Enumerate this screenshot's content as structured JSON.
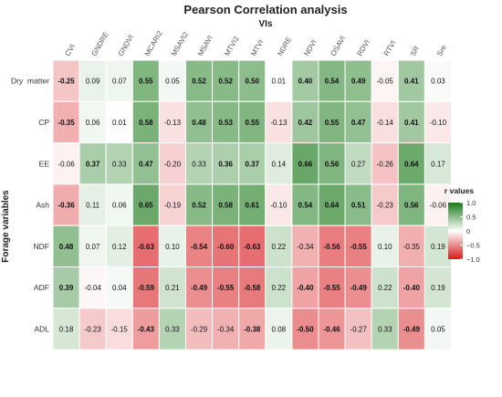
{
  "chart_data": {
    "type": "heatmap",
    "title": "Pearson Correlation analysis",
    "xlabel": "VIs",
    "ylabel": "Forage variables",
    "columns": [
      "CVI",
      "GNDRE",
      "GNDVI",
      "MCARI2",
      "MSAVI2",
      "MSAVI",
      "MTVI2",
      "MTVI",
      "NDRE",
      "NDVI",
      "OSAVI",
      "RDVI",
      "RTVI",
      "SR",
      "Sre"
    ],
    "rows": [
      "Dry  matter",
      "CP",
      "EE",
      "Ash",
      "NDF",
      "ADF",
      "ADL"
    ],
    "values": [
      [
        -0.25,
        0.09,
        0.07,
        0.55,
        0.05,
        0.52,
        0.52,
        0.5,
        0.01,
        0.4,
        0.54,
        0.49,
        -0.05,
        0.41,
        0.03
      ],
      [
        -0.35,
        0.06,
        0.01,
        0.58,
        -0.13,
        0.48,
        0.53,
        0.55,
        -0.13,
        0.42,
        0.55,
        0.47,
        -0.14,
        0.41,
        -0.1
      ],
      [
        -0.06,
        0.37,
        0.33,
        0.47,
        -0.2,
        0.33,
        0.36,
        0.37,
        0.14,
        0.66,
        0.56,
        0.27,
        -0.26,
        0.64,
        0.17
      ],
      [
        -0.36,
        0.11,
        0.06,
        0.65,
        -0.19,
        0.52,
        0.58,
        0.61,
        -0.1,
        0.54,
        0.64,
        0.51,
        -0.23,
        0.56,
        -0.06
      ],
      [
        0.48,
        0.07,
        0.12,
        -0.63,
        0.1,
        -0.54,
        -0.6,
        -0.63,
        0.22,
        -0.34,
        -0.56,
        -0.55,
        0.1,
        -0.35,
        0.19
      ],
      [
        0.39,
        -0.04,
        0.04,
        -0.59,
        0.21,
        -0.49,
        -0.55,
        -0.58,
        0.22,
        -0.4,
        -0.55,
        -0.49,
        0.22,
        -0.4,
        0.19
      ],
      [
        0.18,
        -0.23,
        -0.15,
        -0.43,
        0.33,
        -0.29,
        -0.34,
        -0.38,
        0.08,
        -0.5,
        -0.46,
        -0.27,
        0.33,
        -0.49,
        0.05
      ]
    ],
    "bold": [
      [
        1,
        0,
        0,
        1,
        0,
        1,
        1,
        1,
        0,
        1,
        1,
        1,
        0,
        1,
        0
      ],
      [
        1,
        0,
        0,
        1,
        0,
        1,
        1,
        1,
        0,
        1,
        1,
        1,
        0,
        1,
        0
      ],
      [
        0,
        1,
        0,
        1,
        0,
        0,
        1,
        1,
        0,
        1,
        1,
        0,
        0,
        1,
        0
      ],
      [
        1,
        0,
        0,
        1,
        0,
        1,
        1,
        1,
        0,
        1,
        1,
        1,
        0,
        1,
        0
      ],
      [
        1,
        0,
        0,
        1,
        0,
        1,
        1,
        1,
        0,
        0,
        1,
        1,
        0,
        0,
        0
      ],
      [
        1,
        0,
        0,
        1,
        0,
        1,
        1,
        1,
        0,
        1,
        1,
        1,
        0,
        1,
        0
      ],
      [
        0,
        0,
        0,
        1,
        0,
        0,
        0,
        1,
        0,
        1,
        1,
        0,
        0,
        1,
        0
      ]
    ],
    "color_scale": {
      "min": -1.0,
      "max": 1.0,
      "low_color": "#d7191c",
      "mid_color": "#ffffff",
      "high_color": "#1a7a1a"
    },
    "legend": {
      "title": "r values",
      "ticks": [
        1.0,
        0.5,
        0.0,
        -0.5,
        -1.0
      ],
      "tick_labels": [
        "1.0",
        "0.5",
        "0",
        "−0.5",
        "−1.0"
      ],
      "placement": "right"
    }
  }
}
